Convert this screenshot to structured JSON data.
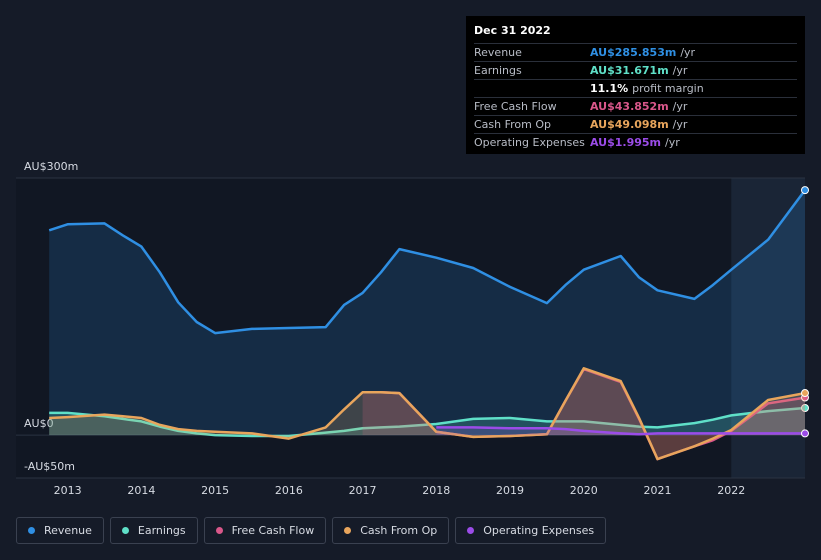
{
  "chart_data": {
    "type": "line",
    "x": [
      2012.75,
      2013,
      2013.5,
      2013.75,
      2014,
      2014.25,
      2014.5,
      2014.75,
      2015,
      2015.5,
      2016,
      2016.5,
      2016.75,
      2017,
      2017.25,
      2017.5,
      2018,
      2018.5,
      2019,
      2019.5,
      2019.75,
      2020,
      2020.5,
      2020.75,
      2021,
      2021.5,
      2021.75,
      2022,
      2022.5,
      2023
    ],
    "series": [
      {
        "name": "Revenue",
        "color": "#2f8fe3",
        "values": [
          239,
          246,
          247,
          233,
          220,
          190,
          155,
          132,
          119,
          124,
          125,
          126,
          152,
          166,
          190,
          217,
          207,
          195,
          173,
          154,
          175,
          193,
          209,
          184,
          169,
          159,
          175,
          193,
          228,
          285.853
        ]
      },
      {
        "name": "Earnings",
        "color": "#5fe0c8",
        "values": [
          26,
          26,
          22,
          19,
          16,
          10,
          5,
          2,
          0,
          -1,
          -1,
          3,
          5,
          8,
          9,
          10,
          13,
          19,
          20,
          16,
          16,
          16,
          12,
          10,
          9,
          14,
          18,
          23,
          28,
          31.671
        ]
      },
      {
        "name": "Free Cash Flow",
        "color": "#d9578a",
        "values": [
          null,
          null,
          null,
          null,
          null,
          null,
          null,
          null,
          null,
          null,
          null,
          null,
          null,
          50,
          50,
          49,
          4,
          -2,
          -1,
          1,
          40,
          77,
          62,
          19,
          -28,
          -13,
          -6,
          5,
          37,
          43.852
        ]
      },
      {
        "name": "Cash From Op",
        "color": "#e8a55c",
        "values": [
          20,
          21,
          24,
          22,
          20,
          12,
          7,
          5,
          4,
          2,
          -4,
          9,
          30,
          50,
          50,
          49,
          4,
          -2,
          -1,
          1,
          40,
          78,
          63,
          20,
          -28,
          -13,
          -4,
          6,
          41,
          49.098
        ]
      },
      {
        "name": "Operating Expenses",
        "color": "#9b4ce8",
        "values": [
          null,
          null,
          null,
          null,
          null,
          null,
          null,
          null,
          null,
          null,
          null,
          null,
          null,
          null,
          null,
          null,
          9,
          9,
          8,
          8,
          7,
          5,
          2,
          1,
          2,
          2,
          2,
          2,
          2,
          1.995
        ]
      }
    ],
    "xlim": [
      2012.3,
      2023.0
    ],
    "xticks": [
      2013,
      2014,
      2015,
      2016,
      2017,
      2018,
      2019,
      2020,
      2021,
      2022
    ],
    "ylim": [
      -50,
      300
    ],
    "yticks": [
      {
        "value": 300,
        "label": "AU$300m"
      },
      {
        "value": 0,
        "label": "AU$0"
      },
      {
        "value": -50,
        "label": "-AU$50m"
      }
    ],
    "grid": true,
    "legend": "bottom"
  },
  "tooltip": {
    "date": "Dec 31 2022",
    "rows": [
      {
        "label": "Revenue",
        "value": "AU$285.853m",
        "suffix": "/yr",
        "color": "#2f8fe3"
      },
      {
        "label": "Earnings",
        "value": "AU$31.671m",
        "suffix": "/yr",
        "color": "#5fe0c8"
      },
      {
        "value": "11.1%",
        "suffix": "profit margin",
        "color": "#ffffff"
      },
      {
        "label": "Free Cash Flow",
        "value": "AU$43.852m",
        "suffix": "/yr",
        "color": "#d9578a"
      },
      {
        "label": "Cash From Op",
        "value": "AU$49.098m",
        "suffix": "/yr",
        "color": "#e8a55c"
      },
      {
        "label": "Operating Expenses",
        "value": "AU$1.995m",
        "suffix": "/yr",
        "color": "#9b4ce8"
      }
    ]
  }
}
